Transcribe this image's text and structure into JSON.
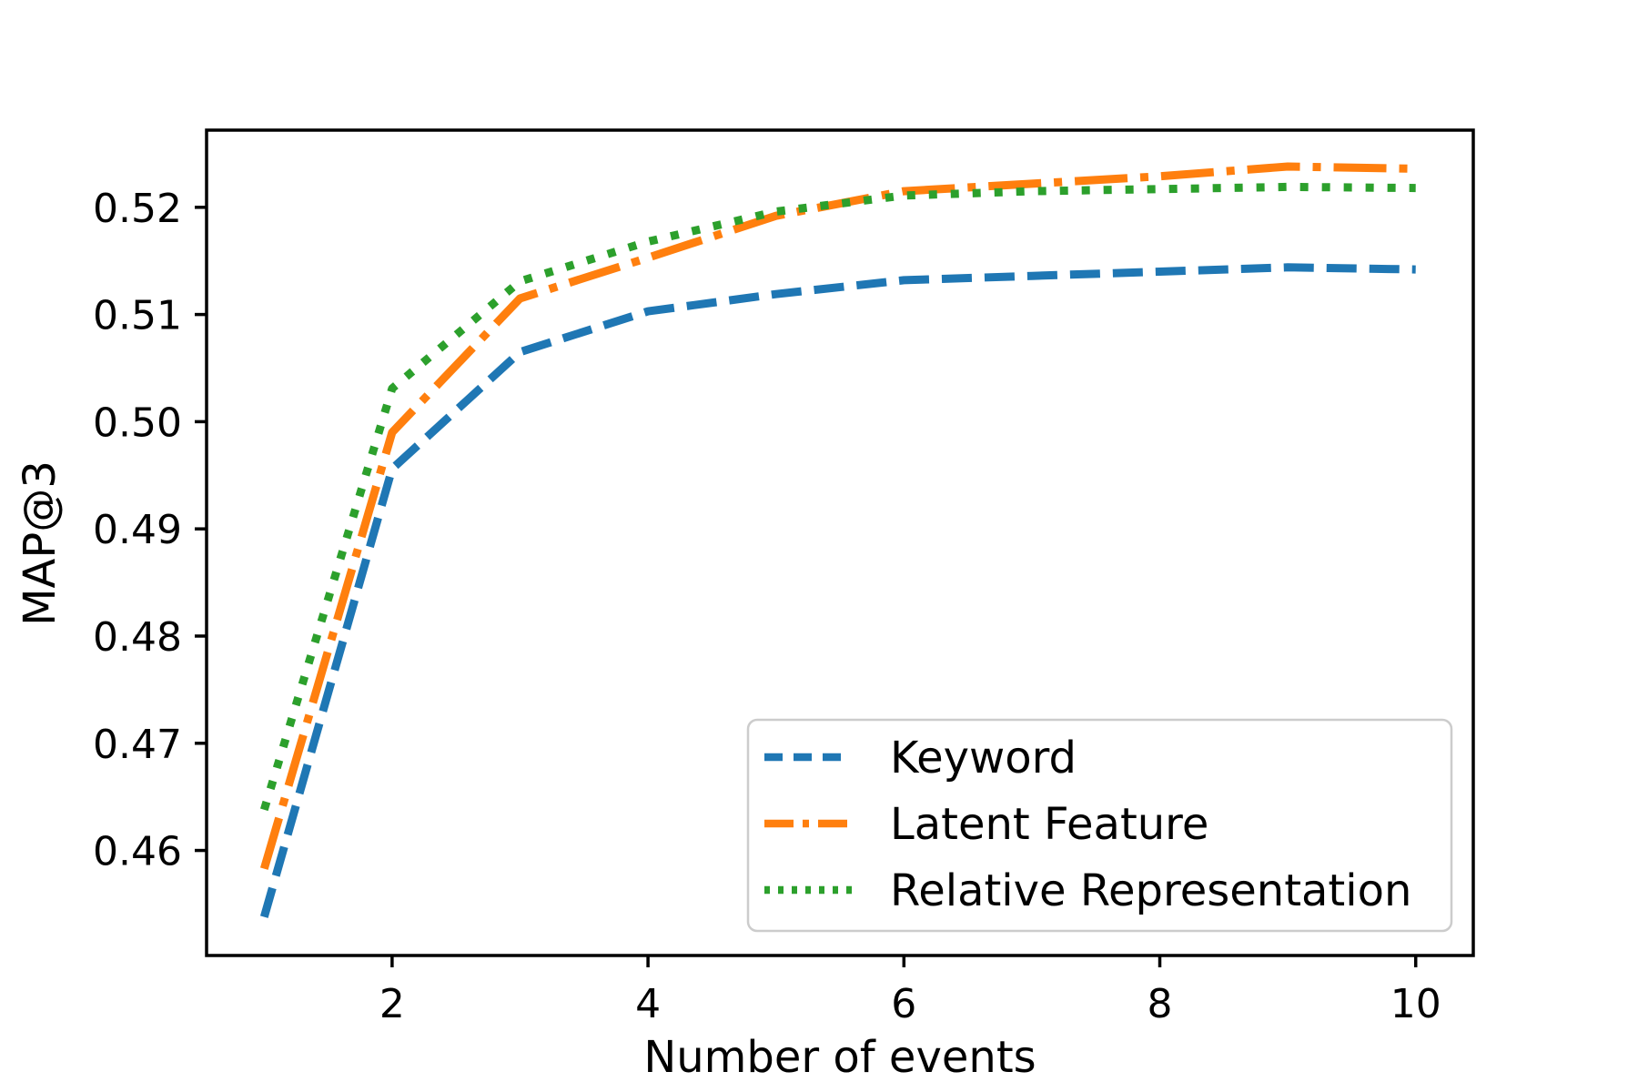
{
  "chart_data": {
    "type": "line",
    "title": "",
    "xlabel": "Number of events",
    "ylabel": "MAP@3",
    "x": [
      1,
      2,
      3,
      4,
      5,
      6,
      7,
      8,
      9,
      10
    ],
    "series": [
      {
        "name": "Keyword",
        "color": "#1f77b4",
        "linestyle": "dashed",
        "values": [
          0.4538,
          0.4956,
          0.5065,
          0.5103,
          0.5119,
          0.5132,
          0.5136,
          0.514,
          0.5144,
          0.5142
        ]
      },
      {
        "name": "Latent Feature",
        "color": "#ff7f0e",
        "linestyle": "dashdot",
        "values": [
          0.4583,
          0.499,
          0.5115,
          0.5153,
          0.5192,
          0.5215,
          0.5222,
          0.5229,
          0.5238,
          0.5236
        ]
      },
      {
        "name": "Relative Representation",
        "color": "#2ca02c",
        "linestyle": "dotted",
        "values": [
          0.4638,
          0.5031,
          0.5131,
          0.5168,
          0.5196,
          0.5211,
          0.5215,
          0.5217,
          0.5219,
          0.5218
        ]
      }
    ],
    "xticks": [
      "2",
      "4",
      "6",
      "8",
      "10"
    ],
    "xtick_values": [
      2,
      4,
      6,
      8,
      10
    ],
    "yticks": [
      "0.46",
      "0.47",
      "0.48",
      "0.49",
      "0.50",
      "0.51",
      "0.52"
    ],
    "ytick_values": [
      0.46,
      0.47,
      0.48,
      0.49,
      0.5,
      0.51,
      0.52
    ],
    "xlim": [
      0.55,
      10.45
    ],
    "ylim": [
      0.4502,
      0.5272
    ],
    "grid": false,
    "legend": {
      "position": "lower right",
      "entries": [
        "Keyword",
        "Latent Feature",
        "Relative Representation"
      ]
    },
    "axis_color": "#000000",
    "legend_border_color": "#cccccc",
    "background_color": "#ffffff"
  }
}
